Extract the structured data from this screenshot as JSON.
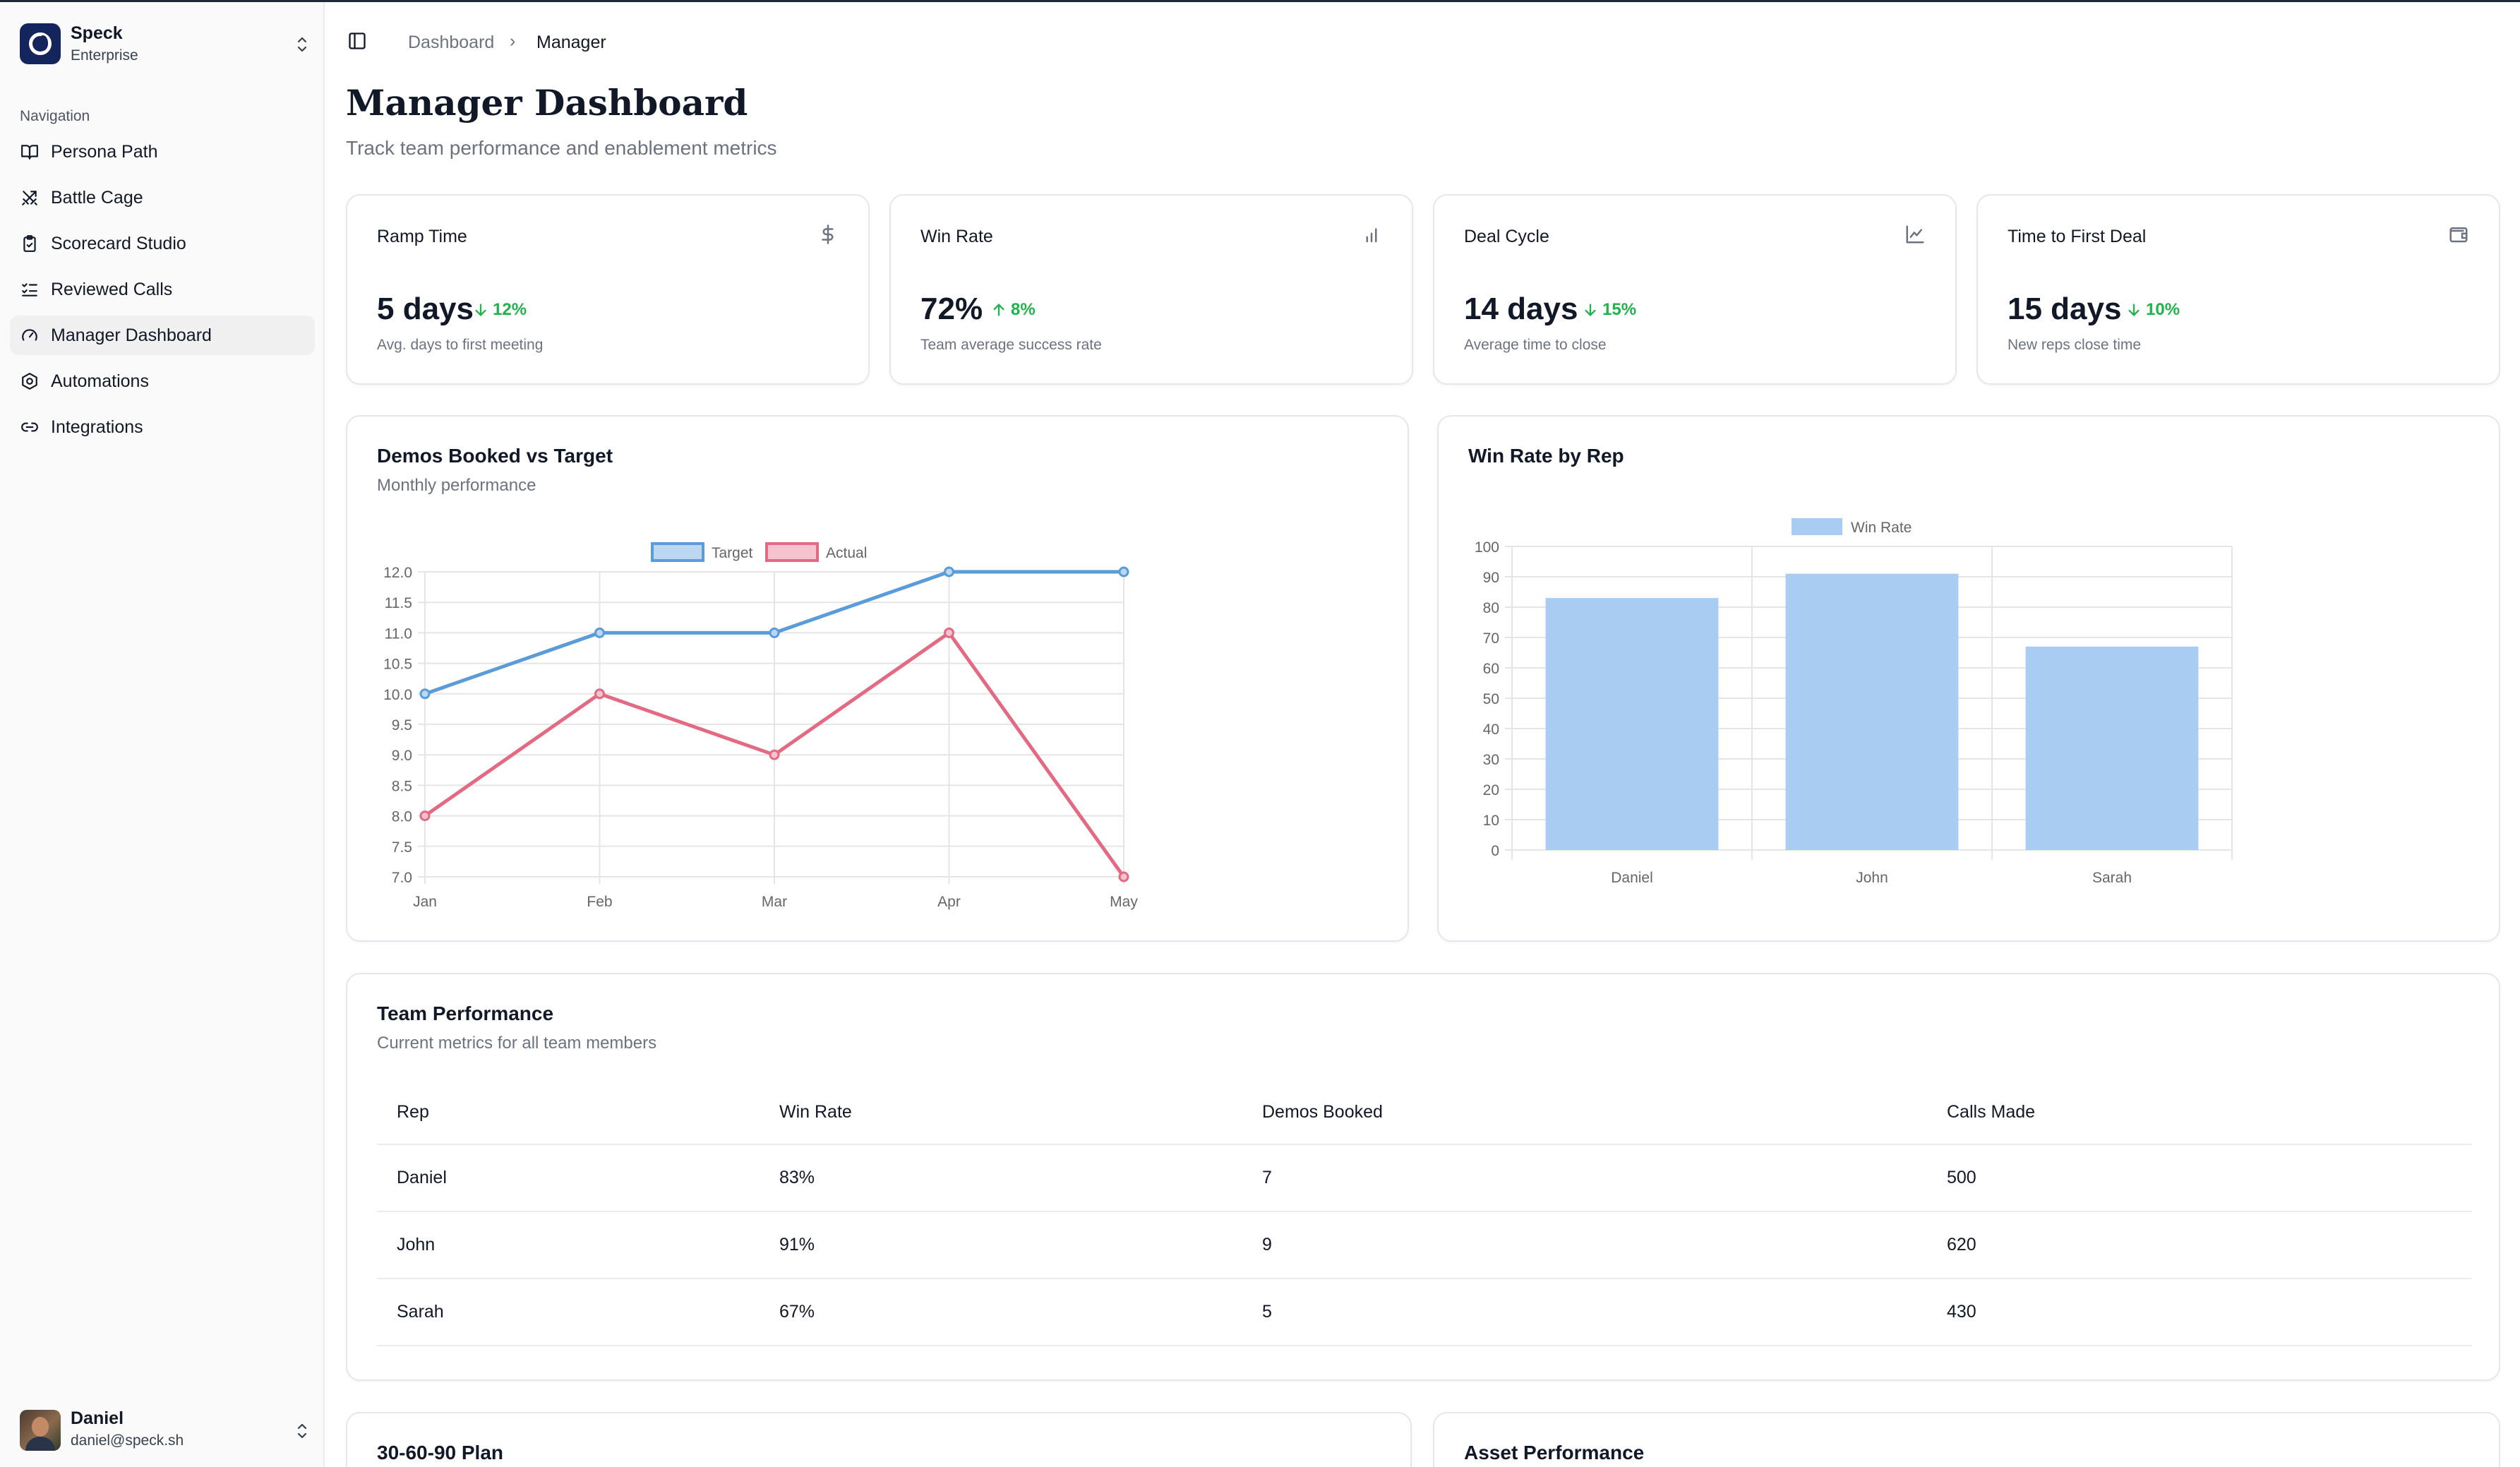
{
  "sidebar": {
    "brand": {
      "name": "Speck",
      "plan": "Enterprise"
    },
    "nav_heading": "Navigation",
    "items": [
      {
        "label": "Persona Path",
        "icon": "book-open-icon"
      },
      {
        "label": "Battle Cage",
        "icon": "crossed-swords-icon"
      },
      {
        "label": "Scorecard Studio",
        "icon": "clipboard-check-icon"
      },
      {
        "label": "Reviewed Calls",
        "icon": "list-checks-icon"
      },
      {
        "label": "Manager Dashboard",
        "icon": "gauge-icon",
        "active": true
      },
      {
        "label": "Automations",
        "icon": "hexagon-settings-icon"
      },
      {
        "label": "Integrations",
        "icon": "link-icon"
      }
    ],
    "user": {
      "name": "Daniel",
      "email": "daniel@speck.sh"
    }
  },
  "breadcrumb": {
    "parent": "Dashboard",
    "separator": "›",
    "current": "Manager"
  },
  "page": {
    "title": "Manager Dashboard",
    "subtitle": "Track team performance and enablement metrics"
  },
  "stats": [
    {
      "title": "Ramp Time",
      "value": "5 days",
      "trend": "12%",
      "direction": "down",
      "desc": "Avg. days to first meeting",
      "icon": "dollar-icon"
    },
    {
      "title": "Win Rate",
      "value": "72%",
      "trend": "8%",
      "direction": "up",
      "desc": "Team average success rate",
      "icon": "bar-chart-icon"
    },
    {
      "title": "Deal Cycle",
      "value": "14 days",
      "trend": "15%",
      "direction": "down",
      "desc": "Average time to close",
      "icon": "line-chart-icon"
    },
    {
      "title": "Time to First Deal",
      "value": "15 days",
      "trend": "10%",
      "direction": "down",
      "desc": "New reps close time",
      "icon": "wallet-icon"
    }
  ],
  "colors": {
    "trend": "#22b24c",
    "target": "#5a9bd9",
    "actual": "#e36a82",
    "bar": "#a9cdf2"
  },
  "chart_data": [
    {
      "type": "line",
      "title": "Demos Booked vs Target",
      "subtitle": "Monthly performance",
      "categories": [
        "Jan",
        "Feb",
        "Mar",
        "Apr",
        "May"
      ],
      "series": [
        {
          "name": "Target",
          "values": [
            10,
            11,
            11,
            12,
            12
          ]
        },
        {
          "name": "Actual",
          "values": [
            8,
            10,
            9,
            11,
            7
          ]
        }
      ],
      "ylim": [
        7,
        12
      ],
      "yticks": [
        "12.0",
        "11.5",
        "11.0",
        "10.5",
        "10.0",
        "9.5",
        "9.0",
        "8.5",
        "8.0",
        "7.5",
        "7.0"
      ],
      "legend": "top",
      "grid": true
    },
    {
      "type": "bar",
      "title": "Win Rate by Rep",
      "categories": [
        "Daniel",
        "John",
        "Sarah"
      ],
      "series": [
        {
          "name": "Win Rate",
          "values": [
            83,
            91,
            67
          ]
        }
      ],
      "ylim": [
        0,
        100
      ],
      "yticks": [
        "100",
        "90",
        "80",
        "70",
        "60",
        "50",
        "40",
        "30",
        "20",
        "10",
        "0"
      ],
      "legend": "top",
      "grid": true
    }
  ],
  "team": {
    "title": "Team Performance",
    "subtitle": "Current metrics for all team members",
    "columns": [
      "Rep",
      "Win Rate",
      "Demos Booked",
      "Calls Made"
    ],
    "rows": [
      [
        "Daniel",
        "83%",
        "7",
        "500"
      ],
      [
        "John",
        "91%",
        "9",
        "620"
      ],
      [
        "Sarah",
        "67%",
        "5",
        "430"
      ]
    ]
  },
  "bottom_cards": {
    "left_title": "30-60-90 Plan",
    "right_title": "Asset Performance"
  }
}
